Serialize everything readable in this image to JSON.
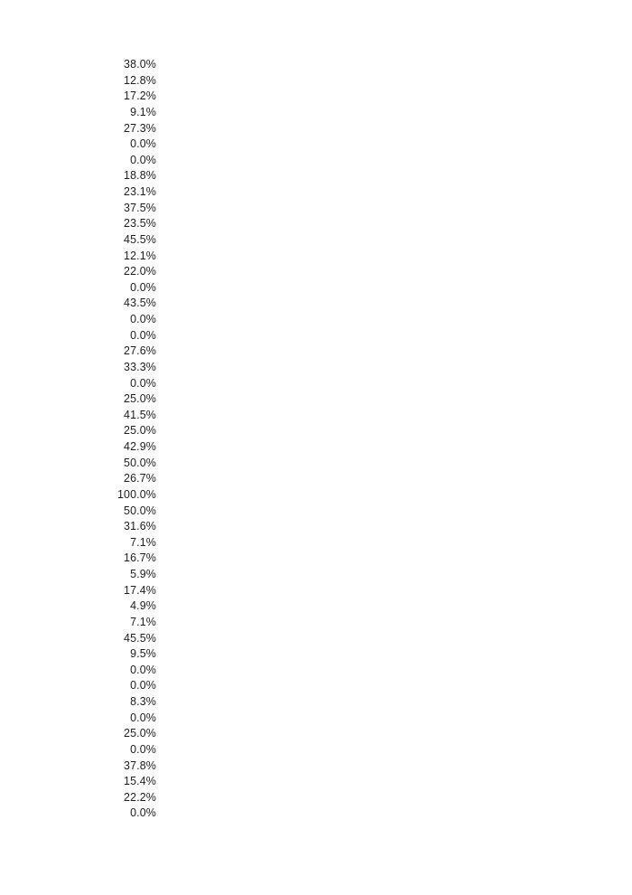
{
  "page": {
    "background_color": "#ffffff",
    "text_color": "#1e1e1e"
  },
  "percentage_column": {
    "values": [
      "38.0%",
      "12.8%",
      "17.2%",
      "9.1%",
      "27.3%",
      "0.0%",
      "0.0%",
      "18.8%",
      "23.1%",
      "37.5%",
      "23.5%",
      "45.5%",
      "12.1%",
      "22.0%",
      "0.0%",
      "43.5%",
      "0.0%",
      "0.0%",
      "27.6%",
      "33.3%",
      "0.0%",
      "25.0%",
      "41.5%",
      "25.0%",
      "42.9%",
      "50.0%",
      "26.7%",
      "100.0%",
      "50.0%",
      "31.6%",
      "7.1%",
      "16.7%",
      "5.9%",
      "17.4%",
      "4.9%",
      "7.1%",
      "45.5%",
      "9.5%",
      "0.0%",
      "0.0%",
      "8.3%",
      "0.0%",
      "25.0%",
      "0.0%",
      "37.8%",
      "15.4%",
      "22.2%",
      "0.0%"
    ]
  }
}
